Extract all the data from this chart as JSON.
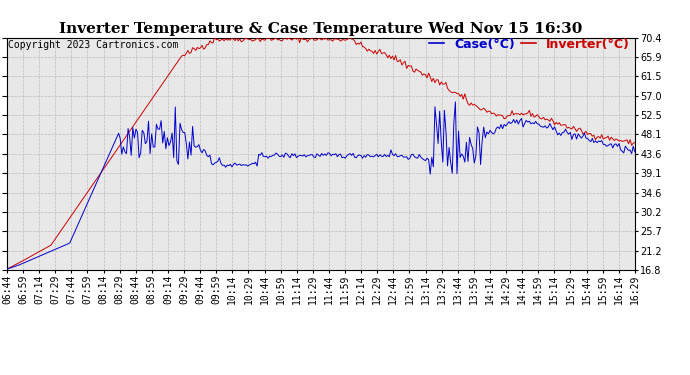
{
  "title": "Inverter Temperature & Case Temperature Wed Nov 15 16:30",
  "copyright": "Copyright 2023 Cartronics.com",
  "legend_case": "Case(°C)",
  "legend_inverter": "Inverter(°C)",
  "yticks": [
    16.8,
    21.2,
    25.7,
    30.2,
    34.6,
    39.1,
    43.6,
    48.1,
    52.5,
    57.0,
    61.5,
    65.9,
    70.4
  ],
  "ymin": 16.8,
  "ymax": 70.4,
  "background_color": "#ffffff",
  "plot_bg_color": "#e8e8e8",
  "grid_color": "#bbbbbb",
  "case_color": "#0000cc",
  "inverter_color": "#cc0000",
  "title_fontsize": 11,
  "copyright_fontsize": 7,
  "tick_fontsize": 7,
  "legend_fontsize": 9,
  "time_labels": [
    "06:44",
    "06:59",
    "07:14",
    "07:29",
    "07:44",
    "07:59",
    "08:14",
    "08:29",
    "08:44",
    "08:59",
    "09:14",
    "09:29",
    "09:44",
    "09:59",
    "10:14",
    "10:29",
    "10:44",
    "10:59",
    "11:14",
    "11:29",
    "11:44",
    "11:59",
    "12:14",
    "12:29",
    "12:44",
    "12:59",
    "13:14",
    "13:29",
    "13:44",
    "13:59",
    "14:14",
    "14:29",
    "14:44",
    "14:59",
    "15:14",
    "15:29",
    "15:44",
    "15:59",
    "16:14",
    "16:29"
  ]
}
